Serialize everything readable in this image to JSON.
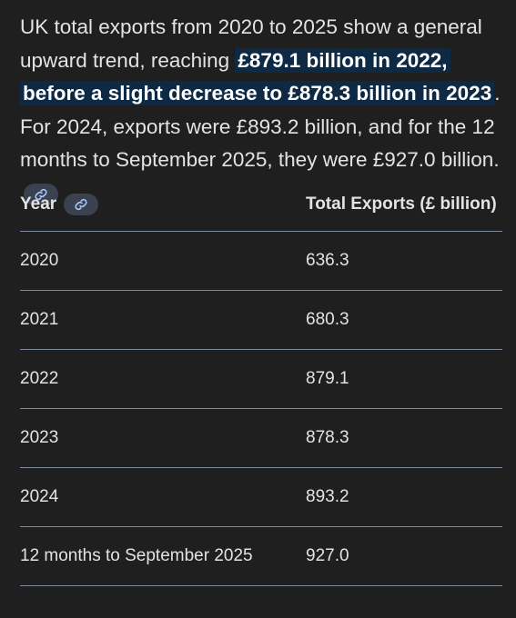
{
  "paragraph": {
    "before": "UK total exports from 2020 to 2025 show a general upward trend, reaching ",
    "highlight": "£879.1 billion in 2022, before a slight decrease to £878.3 billion in 2023",
    "after": ". For 2024, exports were £893.2 billion, and for the 12 months to September 2025, they were £927.0 billion."
  },
  "table": {
    "headers": [
      "Year",
      "Total Exports (£ billion)"
    ],
    "rows": [
      [
        "2020",
        "636.3"
      ],
      [
        "2021",
        "680.3"
      ],
      [
        "2022",
        "879.1"
      ],
      [
        "2023",
        "878.3"
      ],
      [
        "2024",
        "893.2"
      ],
      [
        "12 months to September 2025",
        "927.0"
      ]
    ]
  }
}
